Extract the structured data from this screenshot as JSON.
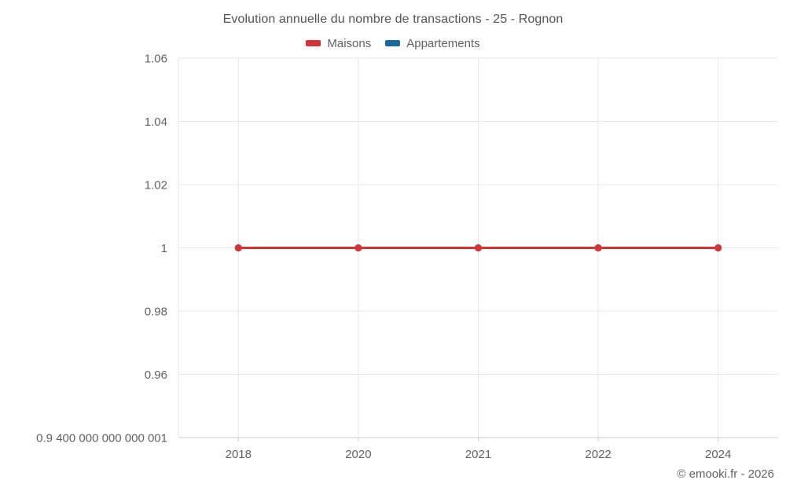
{
  "chart_data": {
    "type": "line",
    "title": "Evolution annuelle du nombre de transactions - 25 - Rognon",
    "categories": [
      "2018",
      "2020",
      "2021",
      "2022",
      "2024"
    ],
    "series": [
      {
        "name": "Maisons",
        "color": "#d33438",
        "values": [
          1,
          1,
          1,
          1,
          1
        ]
      },
      {
        "name": "Appartements",
        "color": "#17699f",
        "values": []
      }
    ],
    "y_tick_labels": [
      "1.06",
      "1.04",
      "1.02",
      "1",
      "0.98",
      "0.96",
      "0.9 400 000 000 000 001"
    ],
    "y_tick_values": [
      1.06,
      1.04,
      1.02,
      1,
      0.98,
      0.96,
      0.94
    ],
    "ylim": [
      0.94,
      1.06
    ],
    "grid": true,
    "legend_position": "top",
    "marker": "circle"
  },
  "footer": {
    "copyright": "© emooki.fr - 2026"
  },
  "colors": {
    "grid": "#e7e7e7",
    "axis": "#cccccc",
    "tick_text": "#616161",
    "title_text": "#555555"
  }
}
